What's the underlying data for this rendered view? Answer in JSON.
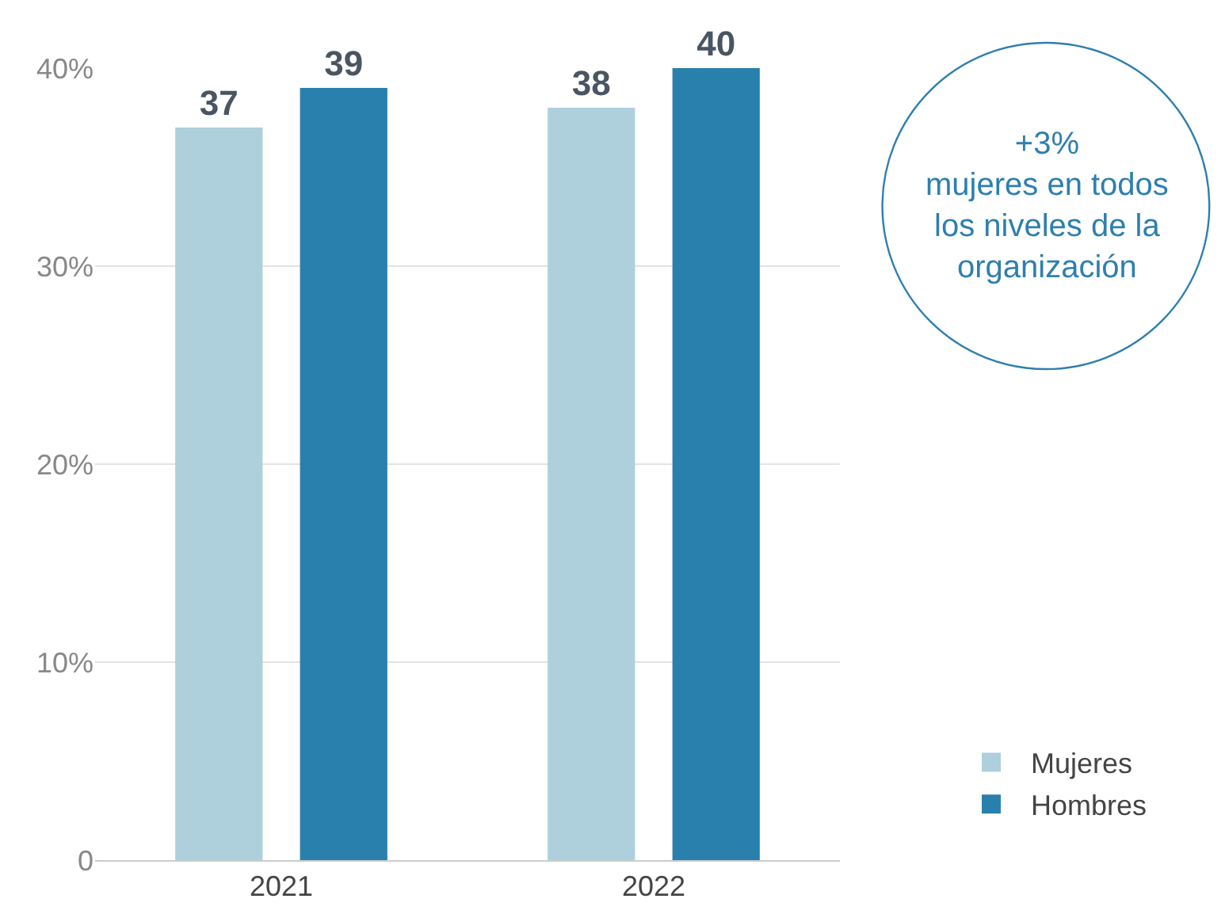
{
  "chart_data": {
    "type": "bar",
    "categories": [
      "2021",
      "2022"
    ],
    "series": [
      {
        "name": "Mujeres",
        "color": "#aecfdc",
        "values": [
          37,
          38
        ]
      },
      {
        "name": "Hombres",
        "color": "#2a80ac",
        "values": [
          39,
          40
        ]
      }
    ],
    "ylim": [
      0,
      40
    ],
    "yticks": [
      {
        "value": 0,
        "label": "0"
      },
      {
        "value": 10,
        "label": "10%"
      },
      {
        "value": 20,
        "label": "20%"
      },
      {
        "value": 30,
        "label": "30%"
      },
      {
        "value": 40,
        "label": "40%"
      }
    ],
    "grid": "y",
    "legend": "bottom right",
    "data_labels": true,
    "annotations": [
      "+3%\nmujeres en todos\nlos niveles de la\norganización"
    ]
  }
}
